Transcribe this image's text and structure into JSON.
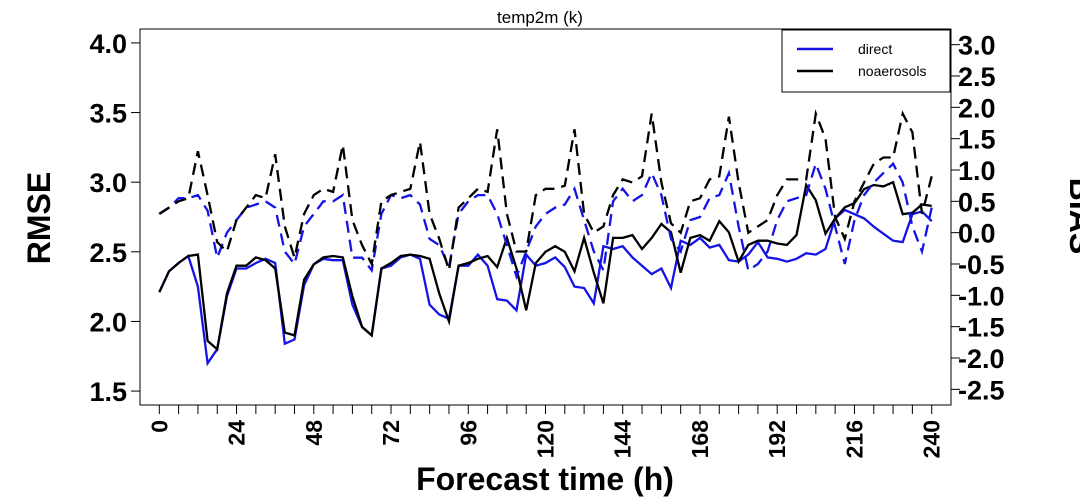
{
  "chart_data": {
    "type": "line",
    "title": "temp2m (k)",
    "xlabel": "Forecast time (h)",
    "ylabel_left": "RMSE",
    "ylabel_right": "BIAS",
    "xlim": [
      -6,
      246
    ],
    "xticks": [
      0,
      6,
      12,
      18,
      24,
      30,
      36,
      42,
      48,
      54,
      60,
      66,
      72,
      78,
      84,
      90,
      96,
      102,
      108,
      114,
      120,
      126,
      132,
      138,
      144,
      150,
      156,
      162,
      168,
      174,
      180,
      186,
      192,
      198,
      204,
      210,
      216,
      222,
      228,
      234,
      240
    ],
    "xtick_labels": [
      "0",
      "24",
      "48",
      "72",
      "96",
      "120",
      "144",
      "168",
      "192",
      "216",
      "240"
    ],
    "ylim_left": [
      1.4,
      4.1
    ],
    "yticks_left": [
      "1.5",
      "2.0",
      "2.5",
      "3.0",
      "3.5",
      "4.0"
    ],
    "ylim_right": [
      -2.75,
      3.25
    ],
    "yticks_right": [
      "-2.5",
      "-2.0",
      "-1.5",
      "-1.0",
      "-0.5",
      "0.0",
      "0.5",
      "1.0",
      "1.5",
      "2.0",
      "2.5",
      "3.0"
    ],
    "grid": false,
    "legend_position": "top-right",
    "legend": [
      {
        "name": "direct",
        "color": "#1414e6"
      },
      {
        "name": "noaerosols",
        "color": "#000000"
      }
    ],
    "series": [
      {
        "legend": "direct",
        "metric": "RMSE",
        "axis": "left",
        "style": "solid",
        "color": "#1414e6",
        "x": [
          0,
          3,
          6,
          9,
          12,
          15,
          18,
          21,
          24,
          27,
          30,
          33,
          36,
          39,
          42,
          45,
          48,
          51,
          54,
          57,
          60,
          63,
          66,
          69,
          72,
          75,
          78,
          81,
          84,
          87,
          90,
          93,
          96,
          99,
          102,
          105,
          108,
          111,
          114,
          117,
          120,
          123,
          126,
          129,
          132,
          135,
          138,
          141,
          144,
          147,
          150,
          153,
          156,
          159,
          162,
          165,
          168,
          171,
          174,
          177,
          180,
          183,
          186,
          189,
          192,
          195,
          198,
          201,
          204,
          207,
          210,
          213,
          216,
          219,
          222,
          225,
          228,
          231,
          234,
          237,
          240
        ],
        "y": [
          2.21,
          2.36,
          2.42,
          2.47,
          2.25,
          1.7,
          1.8,
          2.18,
          2.38,
          2.38,
          2.42,
          2.45,
          2.42,
          1.84,
          1.87,
          2.26,
          2.41,
          2.45,
          2.44,
          2.44,
          2.12,
          1.96,
          1.9,
          2.38,
          2.4,
          2.46,
          2.48,
          2.45,
          2.12,
          2.05,
          2.02,
          2.4,
          2.4,
          2.48,
          2.4,
          2.16,
          2.15,
          2.08,
          2.48,
          2.4,
          2.42,
          2.46,
          2.39,
          2.25,
          2.24,
          2.13,
          2.54,
          2.52,
          2.54,
          2.46,
          2.4,
          2.34,
          2.38,
          2.24,
          2.58,
          2.55,
          2.6,
          2.53,
          2.55,
          2.44,
          2.43,
          2.48,
          2.57,
          2.46,
          2.45,
          2.43,
          2.45,
          2.49,
          2.48,
          2.52,
          2.74,
          2.8,
          2.77,
          2.74,
          2.68,
          2.63,
          2.58,
          2.57,
          2.77,
          2.79,
          2.72
        ]
      },
      {
        "legend": "noaerosols",
        "metric": "RMSE",
        "axis": "left",
        "style": "solid",
        "color": "#000000",
        "x": [
          0,
          3,
          6,
          9,
          12,
          15,
          18,
          21,
          24,
          27,
          30,
          33,
          36,
          39,
          42,
          45,
          48,
          51,
          54,
          57,
          60,
          63,
          66,
          69,
          72,
          75,
          78,
          81,
          84,
          87,
          90,
          93,
          96,
          99,
          102,
          105,
          108,
          111,
          114,
          117,
          120,
          123,
          126,
          129,
          132,
          135,
          138,
          141,
          144,
          147,
          150,
          153,
          156,
          159,
          162,
          165,
          168,
          171,
          174,
          177,
          180,
          183,
          186,
          189,
          192,
          195,
          198,
          201,
          204,
          207,
          210,
          213,
          216,
          219,
          222,
          225,
          228,
          231,
          234,
          237,
          240
        ],
        "y": [
          2.21,
          2.36,
          2.42,
          2.47,
          2.48,
          1.86,
          1.8,
          2.2,
          2.4,
          2.4,
          2.46,
          2.44,
          2.38,
          1.92,
          1.9,
          2.3,
          2.41,
          2.46,
          2.47,
          2.46,
          2.18,
          1.96,
          1.9,
          2.38,
          2.42,
          2.47,
          2.48,
          2.47,
          2.45,
          2.2,
          2.0,
          2.4,
          2.42,
          2.45,
          2.47,
          2.39,
          2.6,
          2.38,
          2.08,
          2.42,
          2.5,
          2.54,
          2.5,
          2.36,
          2.6,
          2.35,
          2.13,
          2.6,
          2.6,
          2.62,
          2.52,
          2.6,
          2.7,
          2.64,
          2.35,
          2.6,
          2.62,
          2.58,
          2.72,
          2.64,
          2.43,
          2.55,
          2.58,
          2.58,
          2.56,
          2.55,
          2.62,
          2.98,
          2.87,
          2.63,
          2.74,
          2.82,
          2.85,
          2.95,
          2.98,
          2.97,
          3.0,
          2.77,
          2.78,
          2.84,
          2.83
        ]
      },
      {
        "legend": "direct",
        "metric": "BIAS",
        "axis": "right",
        "style": "dashed",
        "color": "#1414e6",
        "x": [
          0,
          3,
          6,
          9,
          12,
          15,
          18,
          21,
          24,
          27,
          30,
          33,
          36,
          39,
          42,
          45,
          48,
          51,
          54,
          57,
          60,
          63,
          66,
          69,
          72,
          75,
          78,
          81,
          84,
          87,
          90,
          93,
          96,
          99,
          102,
          105,
          108,
          111,
          114,
          117,
          120,
          123,
          126,
          129,
          132,
          135,
          138,
          141,
          144,
          147,
          150,
          153,
          156,
          159,
          162,
          165,
          168,
          171,
          174,
          177,
          180,
          183,
          186,
          189,
          192,
          195,
          198,
          201,
          204,
          207,
          210,
          213,
          216,
          219,
          222,
          225,
          228,
          231,
          234,
          237,
          240
        ],
        "y": [
          0.3,
          0.4,
          0.55,
          0.55,
          0.6,
          0.35,
          -0.4,
          0.0,
          0.2,
          0.4,
          0.45,
          0.5,
          0.4,
          -0.3,
          -0.5,
          0.1,
          0.3,
          0.5,
          0.5,
          0.6,
          -0.4,
          -0.4,
          -0.6,
          0.3,
          0.6,
          0.55,
          0.6,
          0.45,
          -0.1,
          -0.2,
          -0.55,
          0.3,
          0.5,
          0.6,
          0.6,
          0.3,
          -0.2,
          -0.7,
          -0.3,
          0.1,
          0.3,
          0.4,
          0.45,
          0.7,
          0.2,
          -0.3,
          -0.6,
          0.5,
          0.7,
          0.5,
          0.6,
          0.95,
          0.6,
          -0.1,
          -0.3,
          0.2,
          0.25,
          0.55,
          0.6,
          0.95,
          0.1,
          -0.6,
          -0.5,
          -0.3,
          0.2,
          0.5,
          0.55,
          0.6,
          1.1,
          0.7,
          0.1,
          -0.5,
          0.2,
          0.6,
          0.8,
          0.95,
          1.1,
          0.8,
          0.1,
          -0.3,
          0.4
        ]
      },
      {
        "legend": "noaerosols",
        "metric": "BIAS",
        "axis": "right",
        "style": "dashed",
        "color": "#000000",
        "x": [
          0,
          3,
          6,
          9,
          12,
          15,
          18,
          21,
          24,
          27,
          30,
          33,
          36,
          39,
          42,
          45,
          48,
          51,
          54,
          57,
          60,
          63,
          66,
          69,
          72,
          75,
          78,
          81,
          84,
          87,
          90,
          93,
          96,
          99,
          102,
          105,
          108,
          111,
          114,
          117,
          120,
          123,
          126,
          129,
          132,
          135,
          138,
          141,
          144,
          147,
          150,
          153,
          156,
          159,
          162,
          165,
          168,
          171,
          174,
          177,
          180,
          183,
          186,
          189,
          192,
          195,
          198,
          201,
          204,
          207,
          210,
          213,
          216,
          219,
          222,
          225,
          228,
          231,
          234,
          237,
          240
        ],
        "y": [
          0.3,
          0.4,
          0.5,
          0.55,
          1.3,
          0.6,
          -0.15,
          -0.3,
          0.2,
          0.4,
          0.6,
          0.55,
          1.25,
          0.1,
          -0.4,
          0.3,
          0.6,
          0.7,
          0.65,
          1.4,
          0.2,
          -0.2,
          -0.5,
          0.5,
          0.6,
          0.65,
          0.7,
          1.45,
          0.3,
          -0.1,
          -0.6,
          0.4,
          0.55,
          0.7,
          0.65,
          1.65,
          0.3,
          -0.3,
          -0.3,
          0.6,
          0.7,
          0.7,
          0.75,
          1.65,
          0.3,
          0.0,
          0.1,
          0.6,
          0.85,
          0.8,
          0.9,
          1.9,
          0.8,
          0.15,
          0.0,
          0.5,
          0.55,
          0.85,
          0.9,
          1.85,
          0.8,
          0.0,
          0.1,
          0.2,
          0.6,
          0.85,
          0.85,
          0.85,
          1.9,
          1.5,
          0.25,
          -0.1,
          0.5,
          0.8,
          1.1,
          1.2,
          1.2,
          1.9,
          1.6,
          0.3,
          0.9
        ]
      }
    ]
  }
}
